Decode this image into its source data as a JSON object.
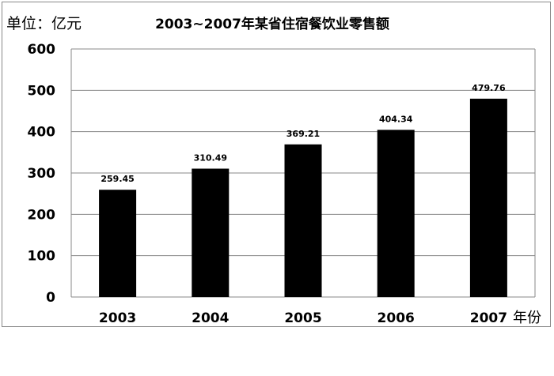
{
  "chart_data": {
    "type": "bar",
    "title": "2003~2007年某省住宿餐饮业零售额",
    "unit_label": "单位：亿元",
    "x_unit_label": "年份",
    "categories": [
      "2003",
      "2004",
      "2005",
      "2006",
      "2007"
    ],
    "values": [
      259.45,
      310.49,
      369.21,
      404.34,
      479.76
    ],
    "data_labels": [
      "259.45",
      "310.49",
      "369.21",
      "404.34",
      "479.76"
    ],
    "ylim": [
      0,
      600
    ],
    "yticks": [
      "0",
      "100",
      "200",
      "300",
      "400",
      "500",
      "600"
    ],
    "grid": true,
    "bar_color": "#000000",
    "grid_color": "#888888"
  }
}
